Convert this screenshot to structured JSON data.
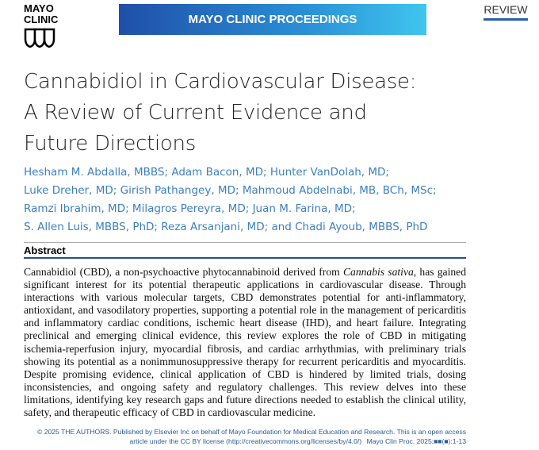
{
  "logo": {
    "line1": "MAYO",
    "line2": "CLINIC"
  },
  "banner": "MAYO CLINIC PROCEEDINGS",
  "section": "REVIEW",
  "title": "Cannabidiol in Cardiovascular Disease: A Review of Current Evidence and Future Directions",
  "authors": [
    "Hesham M. Abdalla, MBBS; Adam Bacon, MD; Hunter VanDolah, MD;",
    "Luke Dreher, MD; Girish Pathangey, MD; Mahmoud Abdelnabi, MB, BCh, MSc;",
    "Ramzi Ibrahim, MD; Milagros Pereyra, MD; Juan M. Farina, MD;",
    "S. Allen Luis, MBBS, PhD; Reza Arsanjani, MD; and Chadi Ayoub, MBBS, PhD"
  ],
  "abstract": {
    "heading": "Abstract",
    "text_before": "Cannabidiol (CBD), a non-psychoactive phytocannabinoid derived from",
    "italic": "Cannabis sativa",
    "text_after": ", has gained significant interest for its potential therapeutic applications in cardiovascular disease. Through interactions with various molecular targets, CBD demonstrates potential for anti-inflammatory, antioxidant, and vasodilatory properties, supporting a potential role in the management of pericarditis and inflammatory cardiac conditions, ischemic heart disease (IHD), and heart failure. Integrating preclinical and emerging clinical evidence, this review explores the role of CBD in mitigating ischemia-reperfusion injury, myocardial fibrosis, and cardiac arrhythmias, with preliminary trials showing its potential as a nonimmunosuppressive therapy for recurrent pericarditis and myocarditis. Despite promising evidence, clinical application of CBD is hindered by limited trials, dosing inconsistencies, and ongoing safety and regulatory challenges. This review delves into these limitations, identifying key research gaps and future directions needed to establish the clinical utility, safety, and therapeutic efficacy of CBD in cardiovascular medicine."
  },
  "footer": {
    "copyright": "© 2025 THE AUTHORS. Published by Elsevier Inc on behalf of Mayo Foundation for Medical Education and Research. This is an open access article under the CC BY license (http://creativecommons.org/licenses/by/4.0/)",
    "citation": "Mayo Clin Proc. 2025;■■(■):1-13"
  }
}
